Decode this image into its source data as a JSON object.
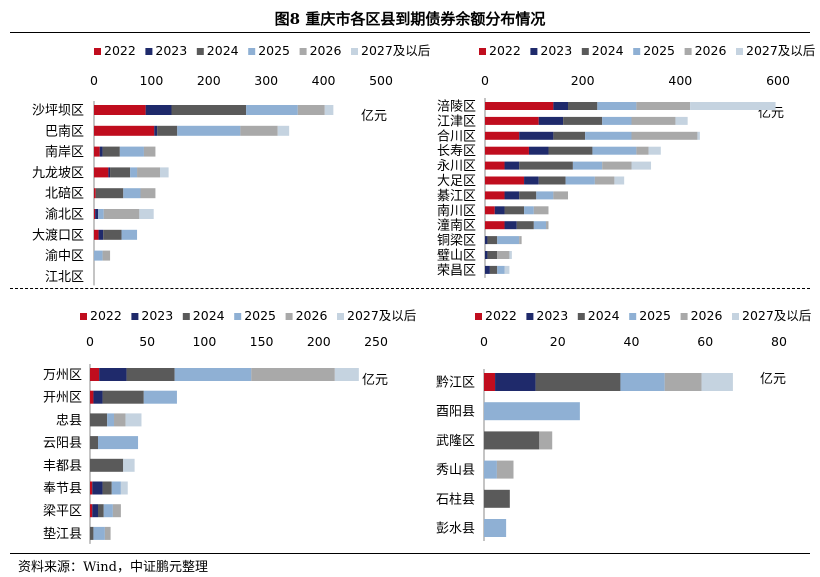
{
  "title": "图8  重庆市各区县到期债券余额分布情况",
  "source": "资料来源：Wind，中证鹏元整理",
  "colors": [
    "#c00d1e",
    "#1f2a6b",
    "#5a5a5a",
    "#8fb0d4",
    "#a9a9a9",
    "#c5d3e0"
  ],
  "chart_data": [
    {
      "type": "bar",
      "orientation": "horizontal",
      "stacked": true,
      "unit": "亿元",
      "xlim": [
        0,
        500
      ],
      "ticks": [
        0,
        100,
        200,
        300,
        400,
        500
      ],
      "legend": [
        "2022",
        "2023",
        "2024",
        "2025",
        "2026",
        "2027及以后"
      ],
      "categories": [
        "沙坪坝区",
        "巴南区",
        "南岸区",
        "九龙坡区",
        "北碚区",
        "渝北区",
        "大渡口区",
        "渝中区",
        "江北区"
      ],
      "series": [
        {
          "name": "2022",
          "values": [
            90,
            105,
            10,
            25,
            3,
            2,
            8,
            0,
            0
          ]
        },
        {
          "name": "2023",
          "values": [
            45,
            5,
            5,
            3,
            0,
            5,
            8,
            0,
            0
          ]
        },
        {
          "name": "2024",
          "values": [
            130,
            35,
            30,
            35,
            48,
            0,
            32,
            0,
            0
          ]
        },
        {
          "name": "2025",
          "values": [
            90,
            110,
            42,
            12,
            30,
            10,
            27,
            15,
            0
          ]
        },
        {
          "name": "2026",
          "values": [
            47,
            65,
            20,
            40,
            26,
            62,
            0,
            13,
            0
          ]
        },
        {
          "name": "2027及以后",
          "values": [
            15,
            20,
            0,
            15,
            0,
            25,
            0,
            0,
            0
          ]
        }
      ]
    },
    {
      "type": "bar",
      "orientation": "horizontal",
      "stacked": true,
      "unit": "亿元",
      "xlim": [
        0,
        600
      ],
      "ticks": [
        0,
        200,
        400,
        600
      ],
      "legend": [
        "2022",
        "2023",
        "2024",
        "2025",
        "2026",
        "2027及以后"
      ],
      "categories": [
        "涪陵区",
        "江津区",
        "合川区",
        "长寿区",
        "永川区",
        "大足区",
        "綦江区",
        "南川区",
        "潼南区",
        "铜梁区",
        "璧山区",
        "荣昌区"
      ],
      "series": [
        {
          "name": "2022",
          "values": [
            140,
            110,
            70,
            90,
            40,
            80,
            40,
            20,
            40,
            0,
            0,
            0
          ]
        },
        {
          "name": "2023",
          "values": [
            30,
            50,
            70,
            40,
            30,
            30,
            30,
            20,
            25,
            5,
            5,
            10
          ]
        },
        {
          "name": "2024",
          "values": [
            60,
            80,
            65,
            90,
            110,
            55,
            35,
            40,
            35,
            20,
            20,
            15
          ]
        },
        {
          "name": "2025",
          "values": [
            80,
            60,
            95,
            90,
            60,
            60,
            35,
            20,
            25,
            45,
            0,
            15
          ]
        },
        {
          "name": "2026",
          "values": [
            110,
            90,
            135,
            25,
            60,
            40,
            30,
            30,
            5,
            5,
            25,
            0
          ]
        },
        {
          "name": "2027及以后",
          "values": [
            175,
            25,
            5,
            25,
            40,
            20,
            0,
            0,
            0,
            0,
            5,
            10
          ]
        }
      ]
    },
    {
      "type": "bar",
      "orientation": "horizontal",
      "stacked": true,
      "unit": "亿元",
      "xlim": [
        0,
        250
      ],
      "ticks": [
        0,
        50,
        100,
        150,
        200,
        250
      ],
      "legend": [
        "2022",
        "2023",
        "2024",
        "2025",
        "2026",
        "2027及以后"
      ],
      "categories": [
        "万州区",
        "开州区",
        "忠县",
        "云阳县",
        "丰都县",
        "奉节县",
        "梁平区",
        "垫江县"
      ],
      "series": [
        {
          "name": "2022",
          "values": [
            8,
            3,
            0,
            0,
            0,
            2,
            2,
            0
          ]
        },
        {
          "name": "2023",
          "values": [
            24,
            8,
            0,
            0,
            0,
            9,
            5,
            0
          ]
        },
        {
          "name": "2024",
          "values": [
            42,
            36,
            15,
            7,
            29,
            8,
            5,
            3
          ]
        },
        {
          "name": "2025",
          "values": [
            67,
            29,
            6,
            35,
            0,
            8,
            8,
            10
          ]
        },
        {
          "name": "2026",
          "values": [
            73,
            0,
            10,
            0,
            0,
            0,
            7,
            5
          ]
        },
        {
          "name": "2027及以后",
          "values": [
            21,
            0,
            14,
            0,
            10,
            6,
            0,
            0
          ]
        }
      ]
    },
    {
      "type": "bar",
      "orientation": "horizontal",
      "stacked": true,
      "unit": "亿元",
      "xlim": [
        0,
        80
      ],
      "ticks": [
        0,
        20,
        40,
        60,
        80
      ],
      "legend": [
        "2022",
        "2023",
        "2024",
        "2025",
        "2026",
        "2027及以后"
      ],
      "categories": [
        "黔江区",
        "酉阳县",
        "武隆区",
        "秀山县",
        "石柱县",
        "彭水县"
      ],
      "series": [
        {
          "name": "2022",
          "values": [
            3,
            0,
            0,
            0,
            0,
            0
          ]
        },
        {
          "name": "2023",
          "values": [
            11,
            0,
            0,
            0,
            0,
            0
          ]
        },
        {
          "name": "2024",
          "values": [
            23,
            0,
            15,
            0,
            7,
            0
          ]
        },
        {
          "name": "2025",
          "values": [
            12,
            26,
            0,
            3.5,
            0,
            6
          ]
        },
        {
          "name": "2026",
          "values": [
            10,
            0,
            3.5,
            4.5,
            0,
            0
          ]
        },
        {
          "name": "2027及以后",
          "values": [
            8.5,
            0,
            0,
            0,
            0,
            0
          ]
        }
      ]
    }
  ]
}
